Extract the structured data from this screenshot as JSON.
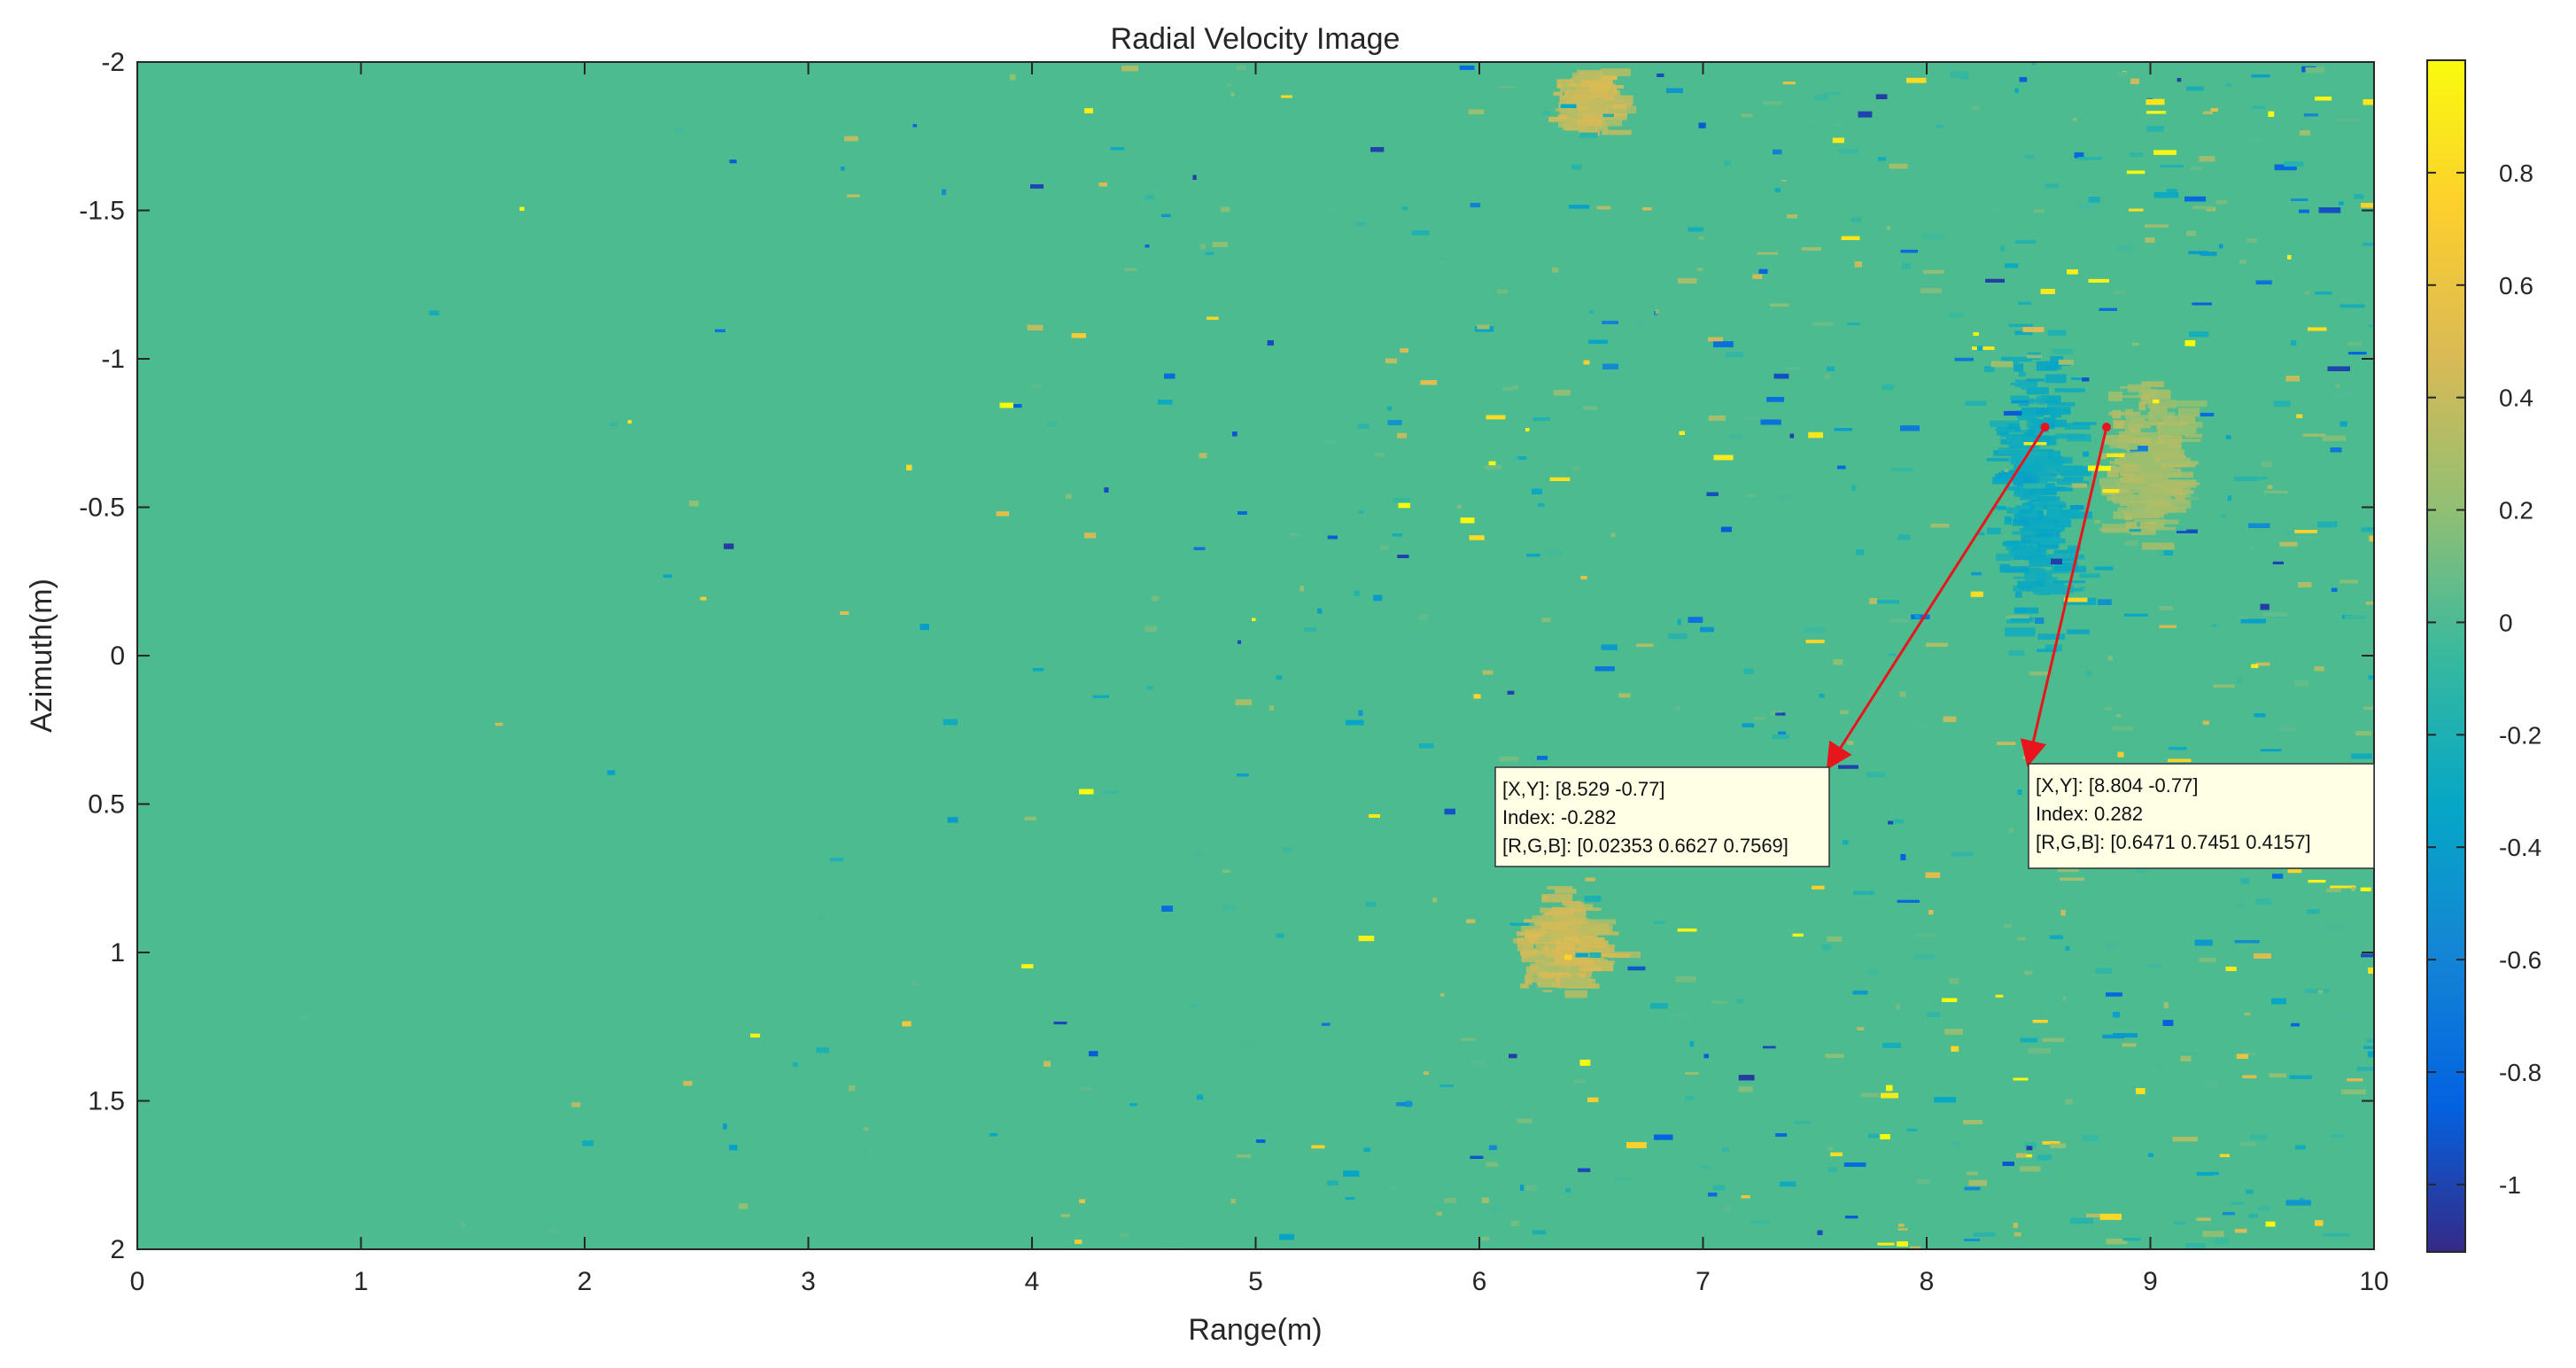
{
  "chart_data": {
    "type": "heatmap",
    "title": "Radial Velocity Image",
    "xlabel": "Range(m)",
    "ylabel": "Azimuth(m)",
    "xlim": [
      0,
      10
    ],
    "ylim": [
      -2,
      2
    ],
    "y_direction": "reversed",
    "x_ticks": [
      "0",
      "1",
      "2",
      "3",
      "4",
      "5",
      "6",
      "7",
      "8",
      "9",
      "10"
    ],
    "y_ticks": [
      "-2",
      "-1.5",
      "-1",
      "-0.5",
      "0",
      "0.5",
      "1",
      "1.5",
      "2"
    ],
    "colormap": "parula",
    "colorbar": {
      "range": [
        -1.12,
        1.0
      ],
      "ticks": [
        "0.8",
        "0.6",
        "0.4",
        "0.2",
        "0",
        "-0.2",
        "-0.4",
        "-0.6",
        "-0.8",
        "-1"
      ],
      "tick_values": [
        0.8,
        0.6,
        0.4,
        0.2,
        0,
        -0.2,
        -0.4,
        -0.6,
        -0.8,
        -1
      ],
      "stops": [
        "#352a87",
        "#0363e1",
        "#1485d4",
        "#06a7c6",
        "#38b99e",
        "#92bf73",
        "#d9ba56",
        "#fcce2e",
        "#f9fb0e"
      ]
    },
    "background_value": 0,
    "background_color": "#4cbb8f",
    "features": [
      {
        "label": "negative-velocity-target",
        "x_range": [
          8.2,
          8.7
        ],
        "y_range": [
          -1.2,
          0.1
        ],
        "value": -0.3
      },
      {
        "label": "positive-velocity-target",
        "x_range": [
          8.7,
          9.2
        ],
        "y_range": [
          -1.0,
          -0.3
        ],
        "value": 0.28
      },
      {
        "label": "upper-clutter-patch",
        "x_range": [
          6.3,
          6.6
        ],
        "y_range": [
          -2.0,
          -1.75
        ],
        "value": 0.4
      },
      {
        "label": "lower-clutter-patch",
        "x_range": [
          6.1,
          6.6
        ],
        "y_range": [
          0.75,
          1.2
        ],
        "value": 0.4
      }
    ],
    "datatips": [
      {
        "point": [
          8.529,
          -0.77
        ],
        "line1": "[X,Y]: [8.529 -0.77]",
        "line2": "Index: -0.282",
        "line3": "[R,G,B]: [0.02353 0.6627 0.7569]"
      },
      {
        "point": [
          8.804,
          -0.77
        ],
        "line1": "[X,Y]: [8.804 -0.77]",
        "line2": "Index: 0.282",
        "line3": "[R,G,B]: [0.6471 0.7451 0.4157]"
      }
    ],
    "annotation_color": "#e8161c"
  }
}
